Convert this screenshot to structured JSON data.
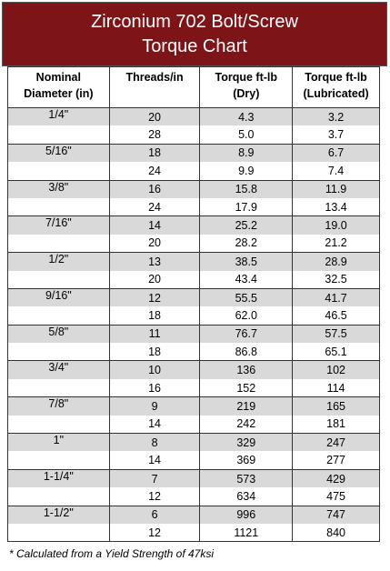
{
  "header": {
    "title": [
      "Zirconium 702 Bolt/Screw",
      "Torque Chart"
    ]
  },
  "table": {
    "columns": [
      [
        "Nominal",
        "Diameter (in)"
      ],
      [
        "Threads/in"
      ],
      [
        "Torque ft-lb",
        "(Dry)"
      ],
      [
        "Torque ft-lb",
        "(Lubricated)"
      ]
    ],
    "groups": [
      {
        "diameter": "1/4\"",
        "rows": [
          [
            "20",
            "4.3",
            "3.2"
          ],
          [
            "28",
            "5.0",
            "3.7"
          ]
        ]
      },
      {
        "diameter": "5/16\"",
        "rows": [
          [
            "18",
            "8.9",
            "6.7"
          ],
          [
            "24",
            "9.9",
            "7.4"
          ]
        ]
      },
      {
        "diameter": "3/8\"",
        "rows": [
          [
            "16",
            "15.8",
            "11.9"
          ],
          [
            "24",
            "17.9",
            "13.4"
          ]
        ]
      },
      {
        "diameter": "7/16\"",
        "rows": [
          [
            "14",
            "25.2",
            "19.0"
          ],
          [
            "20",
            "28.2",
            "21.2"
          ]
        ]
      },
      {
        "diameter": "1/2\"",
        "rows": [
          [
            "13",
            "38.5",
            "28.9"
          ],
          [
            "20",
            "43.4",
            "32.5"
          ]
        ]
      },
      {
        "diameter": "9/16\"",
        "rows": [
          [
            "12",
            "55.5",
            "41.7"
          ],
          [
            "18",
            "62.0",
            "46.5"
          ]
        ]
      },
      {
        "diameter": "5/8\"",
        "rows": [
          [
            "11",
            "76.7",
            "57.5"
          ],
          [
            "18",
            "86.8",
            "65.1"
          ]
        ]
      },
      {
        "diameter": "3/4\"",
        "rows": [
          [
            "10",
            "136",
            "102"
          ],
          [
            "16",
            "152",
            "114"
          ]
        ]
      },
      {
        "diameter": "7/8\"",
        "rows": [
          [
            "9",
            "219",
            "165"
          ],
          [
            "14",
            "242",
            "181"
          ]
        ]
      },
      {
        "diameter": "1\"",
        "rows": [
          [
            "8",
            "329",
            "247"
          ],
          [
            "14",
            "369",
            "277"
          ]
        ]
      },
      {
        "diameter": "1-1/4\"",
        "rows": [
          [
            "7",
            "573",
            "429"
          ],
          [
            "12",
            "634",
            "475"
          ]
        ]
      },
      {
        "diameter": "1-1/2\"",
        "rows": [
          [
            "6",
            "996",
            "747"
          ],
          [
            "12",
            "1121",
            "840"
          ]
        ]
      }
    ]
  },
  "footnote": "* Calculated from a Yield Strength of 47ksi"
}
